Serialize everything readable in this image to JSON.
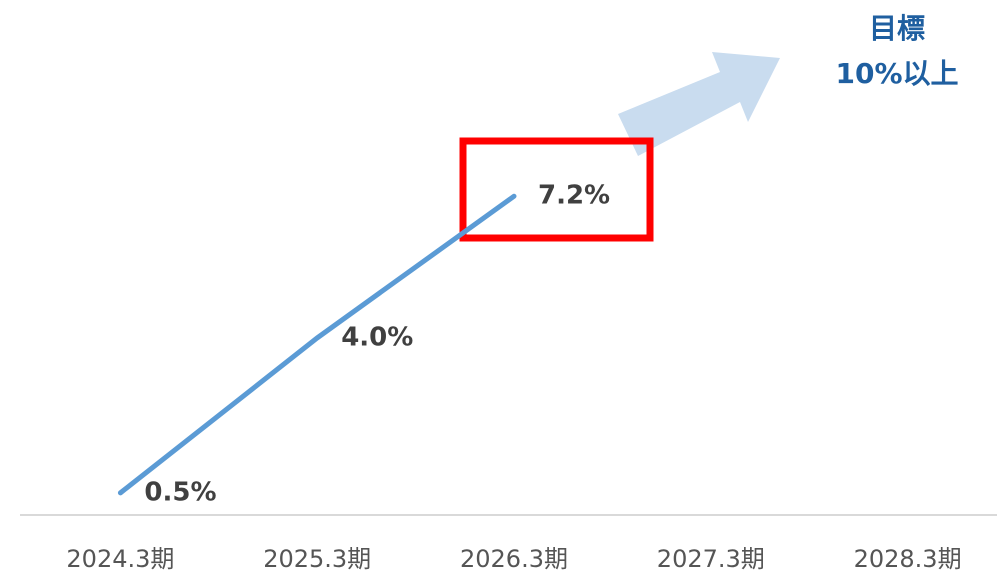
{
  "chart_data": {
    "type": "line",
    "categories": [
      "2024.3期",
      "2025.3期",
      "2026.3期",
      "2027.3期",
      "2028.3期"
    ],
    "values": [
      0.5,
      4.0,
      7.2,
      null,
      null
    ],
    "value_labels": [
      "0.5%",
      "4.0%",
      "7.2%",
      null,
      null
    ],
    "color": "#5b9bd5",
    "ylim": [
      0,
      11
    ],
    "annotations": [
      "目標",
      "10%以上"
    ]
  }
}
